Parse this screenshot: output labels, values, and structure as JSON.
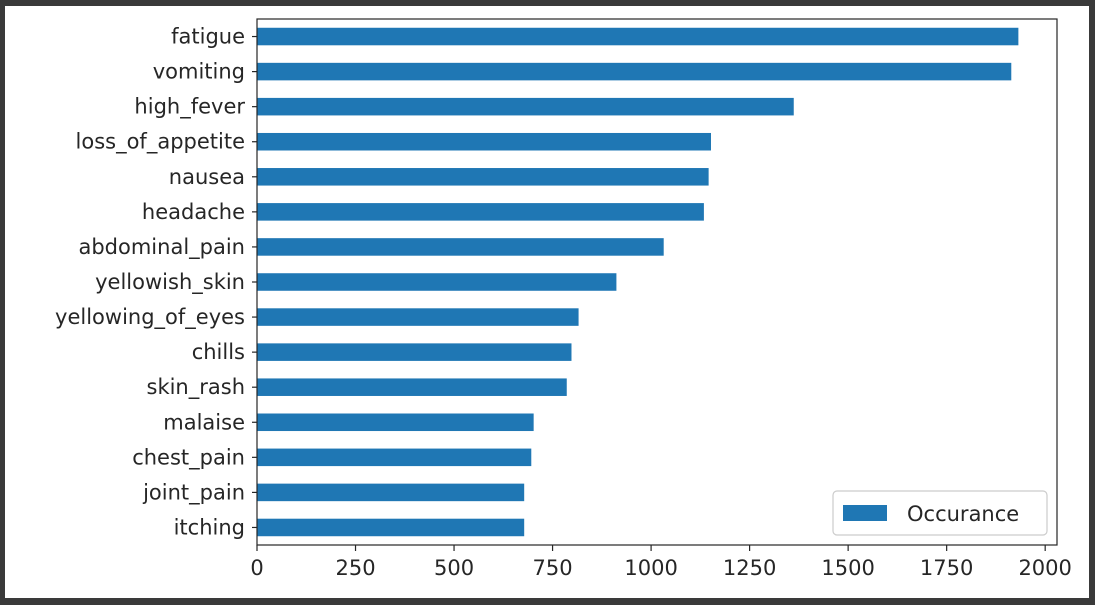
{
  "chart_data": {
    "type": "bar",
    "orientation": "horizontal",
    "categories": [
      "fatigue",
      "vomiting",
      "high_fever",
      "loss_of_appetite",
      "nausea",
      "headache",
      "abdominal_pain",
      "yellowish_skin",
      "yellowing_of_eyes",
      "chills",
      "skin_rash",
      "malaise",
      "chest_pain",
      "joint_pain",
      "itching"
    ],
    "series": [
      {
        "name": "Occurance",
        "color": "#1f77b4",
        "values": [
          1932,
          1914,
          1362,
          1152,
          1146,
          1134,
          1032,
          912,
          816,
          798,
          786,
          702,
          696,
          678,
          678
        ]
      }
    ],
    "xticks": [
      "0",
      "250",
      "500",
      "750",
      "1000",
      "1250",
      "1500",
      "1750",
      "2000"
    ],
    "xlim": [
      0,
      2030
    ],
    "title": "",
    "xlabel": "",
    "ylabel": "",
    "grid": false,
    "legend_position": "bottom-right"
  }
}
